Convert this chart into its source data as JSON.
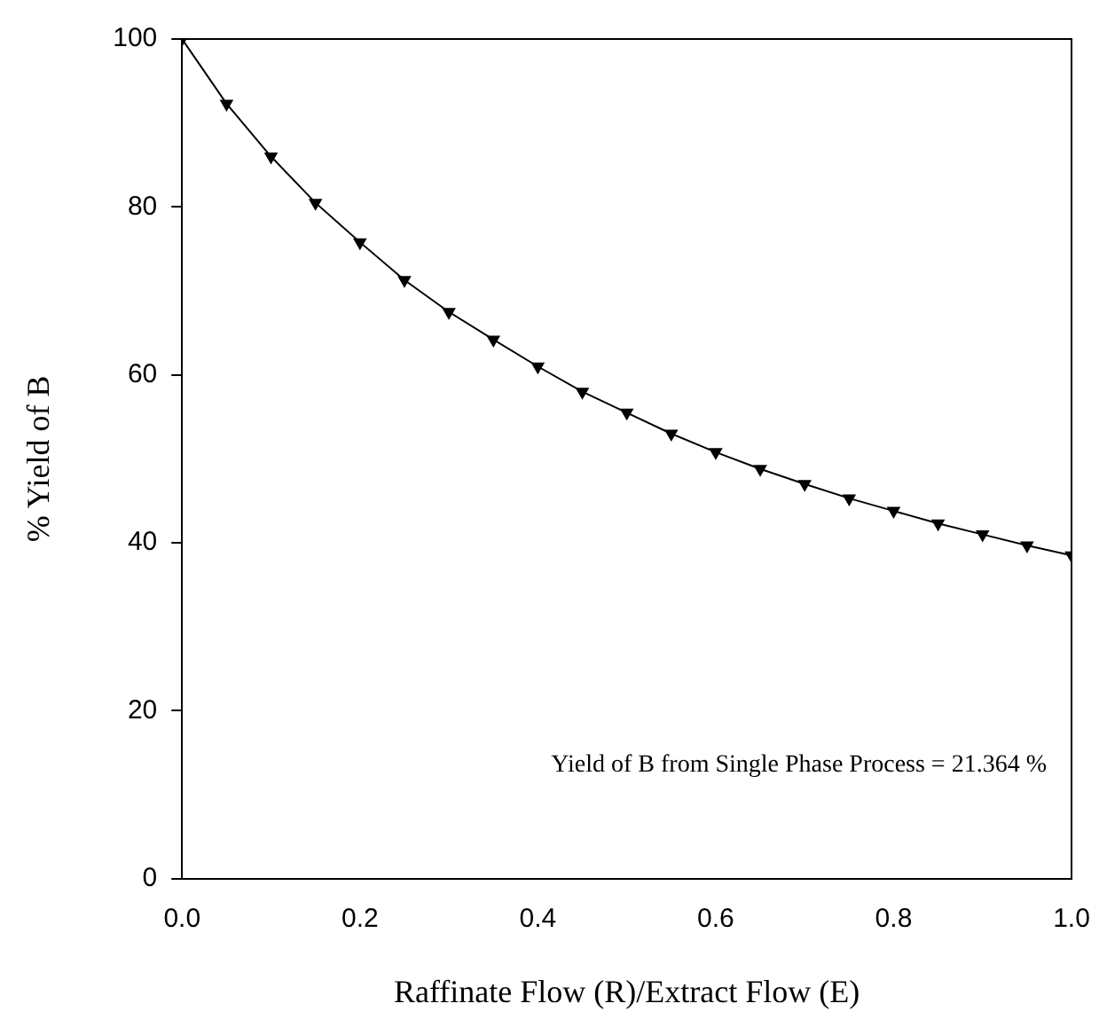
{
  "chart_data": {
    "type": "line",
    "xlabel": "Raffinate Flow (R)/Extract Flow (E)",
    "ylabel": "% Yield of B",
    "x": [
      0,
      0.05,
      0.1,
      0.15,
      0.2,
      0.25,
      0.3,
      0.35,
      0.4,
      0.45,
      0.5,
      0.55,
      0.6,
      0.65,
      0.7,
      0.75,
      0.8,
      0.85,
      0.9,
      0.95,
      1.0
    ],
    "series": [
      {
        "color": "#000000",
        "values": [
          100,
          92.3,
          86,
          80.5,
          75.8,
          71.3,
          67.5,
          64.2,
          61,
          58,
          55.5,
          53,
          50.8,
          48.8,
          47,
          45.3,
          43.8,
          42.3,
          41,
          39.7,
          38.5
        ]
      }
    ],
    "xlim": [
      0,
      1
    ],
    "xticks": [
      {
        "value": 0,
        "label": "0.0"
      },
      0.2,
      0.4,
      0.6,
      0.8,
      {
        "value": 1,
        "label": "1.0"
      }
    ],
    "ylim": [
      0,
      100
    ],
    "yticks": [
      0,
      20,
      40,
      60,
      80,
      100
    ],
    "marker": "triangle",
    "line_style": "solid",
    "grid": false,
    "legend": false,
    "annotations": [
      "Yield of B from Single Phase Process = 21.364 %"
    ]
  }
}
